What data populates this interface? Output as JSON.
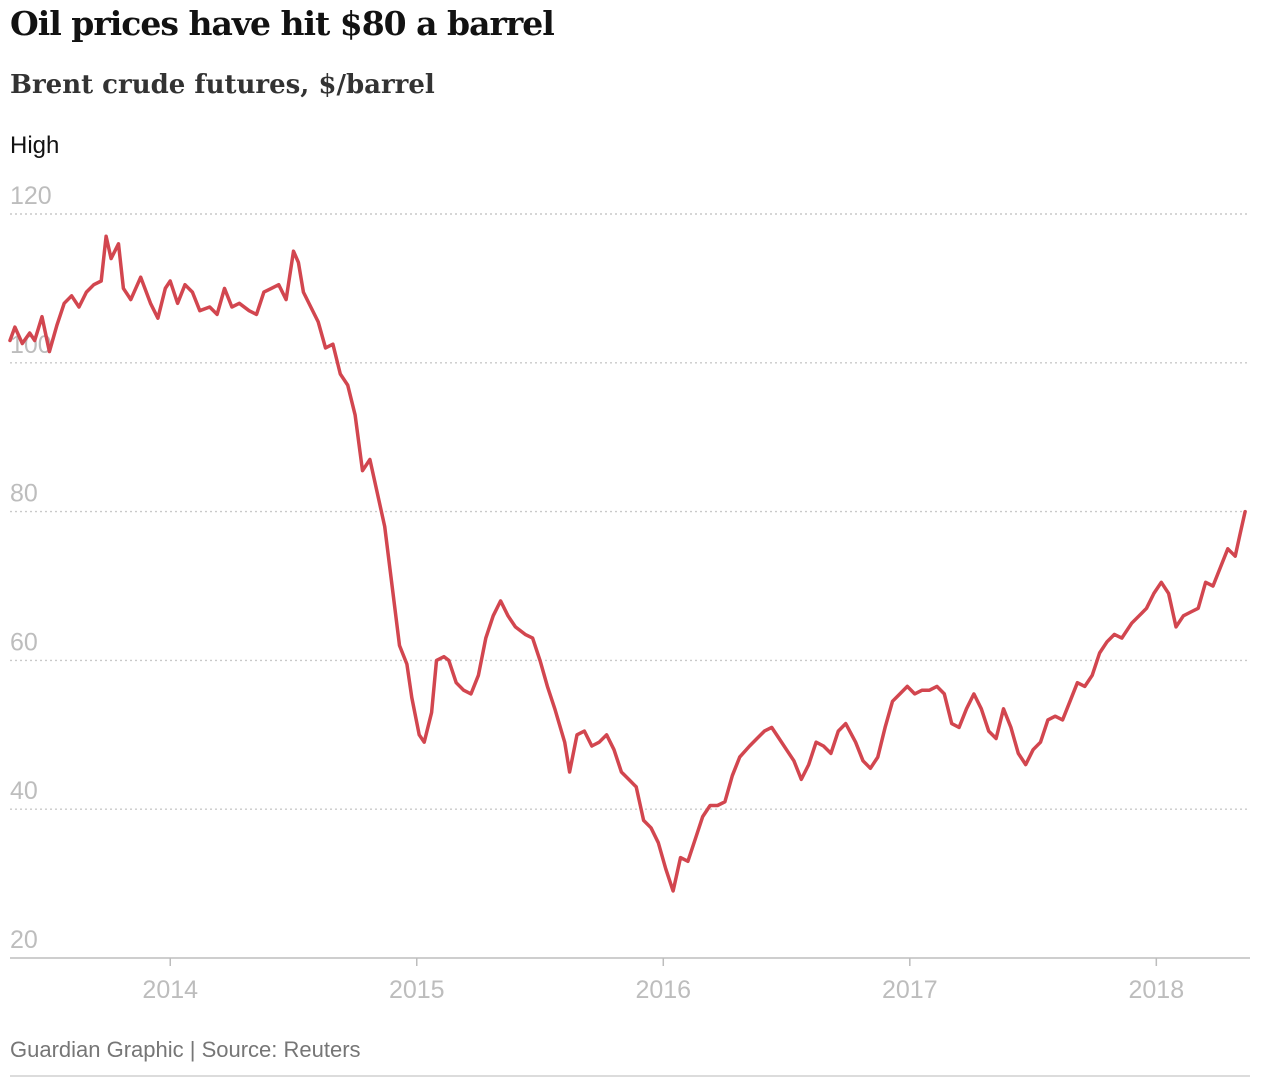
{
  "header": {
    "title": "Oil prices have hit $80 a barrel",
    "subtitle": "Brent crude futures, $/barrel",
    "unit_label": "High"
  },
  "footer": {
    "source": "Guardian Graphic | Source: Reuters"
  },
  "colors": {
    "line": "#d2464f",
    "grid": "#c9c9c9",
    "axis": "#bdbdbd"
  },
  "chart_data": {
    "type": "line",
    "title": "Oil prices have hit $80 a barrel",
    "subtitle": "Brent crude futures, $/barrel",
    "ylabel": "High",
    "xlabel": "",
    "ylim": [
      20,
      120
    ],
    "xlim": [
      2013.35,
      2018.38
    ],
    "yticks": [
      120,
      100,
      80,
      60,
      40,
      20
    ],
    "xticks": [
      2014,
      2015,
      2016,
      2017,
      2018
    ],
    "grid": true,
    "series": [
      {
        "name": "Brent crude futures",
        "points": [
          [
            2013.35,
            103.0
          ],
          [
            2013.37,
            104.8
          ],
          [
            2013.4,
            102.6
          ],
          [
            2013.43,
            104.0
          ],
          [
            2013.45,
            103.0
          ],
          [
            2013.48,
            106.2
          ],
          [
            2013.51,
            101.5
          ],
          [
            2013.54,
            105.0
          ],
          [
            2013.57,
            108.0
          ],
          [
            2013.6,
            109.0
          ],
          [
            2013.63,
            107.5
          ],
          [
            2013.66,
            109.5
          ],
          [
            2013.69,
            110.5
          ],
          [
            2013.72,
            111.0
          ],
          [
            2013.74,
            117.0
          ],
          [
            2013.76,
            114.0
          ],
          [
            2013.79,
            116.0
          ],
          [
            2013.81,
            110.0
          ],
          [
            2013.84,
            108.5
          ],
          [
            2013.88,
            111.5
          ],
          [
            2013.92,
            108.0
          ],
          [
            2013.95,
            106.0
          ],
          [
            2013.98,
            110.0
          ],
          [
            2014.0,
            111.0
          ],
          [
            2014.03,
            108.0
          ],
          [
            2014.06,
            110.5
          ],
          [
            2014.09,
            109.5
          ],
          [
            2014.12,
            107.0
          ],
          [
            2014.16,
            107.5
          ],
          [
            2014.19,
            106.5
          ],
          [
            2014.22,
            110.0
          ],
          [
            2014.25,
            107.5
          ],
          [
            2014.28,
            108.0
          ],
          [
            2014.32,
            107.0
          ],
          [
            2014.35,
            106.5
          ],
          [
            2014.38,
            109.5
          ],
          [
            2014.41,
            110.0
          ],
          [
            2014.44,
            110.5
          ],
          [
            2014.47,
            108.5
          ],
          [
            2014.5,
            115.0
          ],
          [
            2014.52,
            113.5
          ],
          [
            2014.54,
            109.5
          ],
          [
            2014.57,
            107.5
          ],
          [
            2014.6,
            105.5
          ],
          [
            2014.63,
            102.0
          ],
          [
            2014.66,
            102.5
          ],
          [
            2014.69,
            98.5
          ],
          [
            2014.72,
            97.0
          ],
          [
            2014.75,
            93.0
          ],
          [
            2014.78,
            85.5
          ],
          [
            2014.81,
            87.0
          ],
          [
            2014.84,
            82.5
          ],
          [
            2014.87,
            78.0
          ],
          [
            2014.9,
            70.0
          ],
          [
            2014.93,
            62.0
          ],
          [
            2014.96,
            59.5
          ],
          [
            2014.98,
            55.0
          ],
          [
            2015.01,
            50.0
          ],
          [
            2015.03,
            49.0
          ],
          [
            2015.06,
            53.0
          ],
          [
            2015.08,
            60.0
          ],
          [
            2015.11,
            60.5
          ],
          [
            2015.13,
            60.0
          ],
          [
            2015.16,
            57.0
          ],
          [
            2015.19,
            56.0
          ],
          [
            2015.22,
            55.5
          ],
          [
            2015.25,
            58.0
          ],
          [
            2015.28,
            63.0
          ],
          [
            2015.31,
            66.0
          ],
          [
            2015.34,
            68.0
          ],
          [
            2015.37,
            66.0
          ],
          [
            2015.4,
            64.5
          ],
          [
            2015.44,
            63.5
          ],
          [
            2015.47,
            63.0
          ],
          [
            2015.5,
            60.0
          ],
          [
            2015.53,
            56.5
          ],
          [
            2015.56,
            53.5
          ],
          [
            2015.6,
            49.0
          ],
          [
            2015.62,
            45.0
          ],
          [
            2015.65,
            50.0
          ],
          [
            2015.68,
            50.5
          ],
          [
            2015.71,
            48.5
          ],
          [
            2015.74,
            49.0
          ],
          [
            2015.77,
            50.0
          ],
          [
            2015.8,
            48.0
          ],
          [
            2015.83,
            45.0
          ],
          [
            2015.86,
            44.0
          ],
          [
            2015.89,
            43.0
          ],
          [
            2015.92,
            38.5
          ],
          [
            2015.95,
            37.5
          ],
          [
            2015.98,
            35.5
          ],
          [
            2016.01,
            32.0
          ],
          [
            2016.04,
            29.0
          ],
          [
            2016.07,
            33.5
          ],
          [
            2016.1,
            33.0
          ],
          [
            2016.13,
            36.0
          ],
          [
            2016.16,
            39.0
          ],
          [
            2016.19,
            40.5
          ],
          [
            2016.22,
            40.5
          ],
          [
            2016.25,
            41.0
          ],
          [
            2016.28,
            44.5
          ],
          [
            2016.31,
            47.0
          ],
          [
            2016.35,
            48.5
          ],
          [
            2016.38,
            49.5
          ],
          [
            2016.41,
            50.5
          ],
          [
            2016.44,
            51.0
          ],
          [
            2016.47,
            49.5
          ],
          [
            2016.5,
            48.0
          ],
          [
            2016.53,
            46.5
          ],
          [
            2016.56,
            44.0
          ],
          [
            2016.59,
            46.0
          ],
          [
            2016.62,
            49.0
          ],
          [
            2016.65,
            48.5
          ],
          [
            2016.68,
            47.5
          ],
          [
            2016.71,
            50.5
          ],
          [
            2016.74,
            51.5
          ],
          [
            2016.78,
            49.0
          ],
          [
            2016.81,
            46.5
          ],
          [
            2016.84,
            45.5
          ],
          [
            2016.87,
            47.0
          ],
          [
            2016.9,
            51.0
          ],
          [
            2016.93,
            54.5
          ],
          [
            2016.96,
            55.5
          ],
          [
            2016.99,
            56.5
          ],
          [
            2017.02,
            55.5
          ],
          [
            2017.05,
            56.0
          ],
          [
            2017.08,
            56.0
          ],
          [
            2017.11,
            56.5
          ],
          [
            2017.14,
            55.5
          ],
          [
            2017.17,
            51.5
          ],
          [
            2017.2,
            51.0
          ],
          [
            2017.23,
            53.5
          ],
          [
            2017.26,
            55.5
          ],
          [
            2017.29,
            53.5
          ],
          [
            2017.32,
            50.5
          ],
          [
            2017.35,
            49.5
          ],
          [
            2017.38,
            53.5
          ],
          [
            2017.41,
            51.0
          ],
          [
            2017.44,
            47.5
          ],
          [
            2017.47,
            46.0
          ],
          [
            2017.5,
            48.0
          ],
          [
            2017.53,
            49.0
          ],
          [
            2017.56,
            52.0
          ],
          [
            2017.59,
            52.5
          ],
          [
            2017.62,
            52.0
          ],
          [
            2017.65,
            54.5
          ],
          [
            2017.68,
            57.0
          ],
          [
            2017.71,
            56.5
          ],
          [
            2017.74,
            58.0
          ],
          [
            2017.77,
            61.0
          ],
          [
            2017.8,
            62.5
          ],
          [
            2017.83,
            63.5
          ],
          [
            2017.86,
            63.0
          ],
          [
            2017.9,
            65.0
          ],
          [
            2017.93,
            66.0
          ],
          [
            2017.96,
            67.0
          ],
          [
            2017.99,
            69.0
          ],
          [
            2018.02,
            70.5
          ],
          [
            2018.05,
            69.0
          ],
          [
            2018.08,
            64.5
          ],
          [
            2018.11,
            66.0
          ],
          [
            2018.14,
            66.5
          ],
          [
            2018.17,
            67.0
          ],
          [
            2018.2,
            70.5
          ],
          [
            2018.23,
            70.0
          ],
          [
            2018.26,
            72.5
          ],
          [
            2018.29,
            75.0
          ],
          [
            2018.32,
            74.0
          ],
          [
            2018.34,
            77.0
          ],
          [
            2018.36,
            80.0
          ]
        ]
      }
    ]
  }
}
